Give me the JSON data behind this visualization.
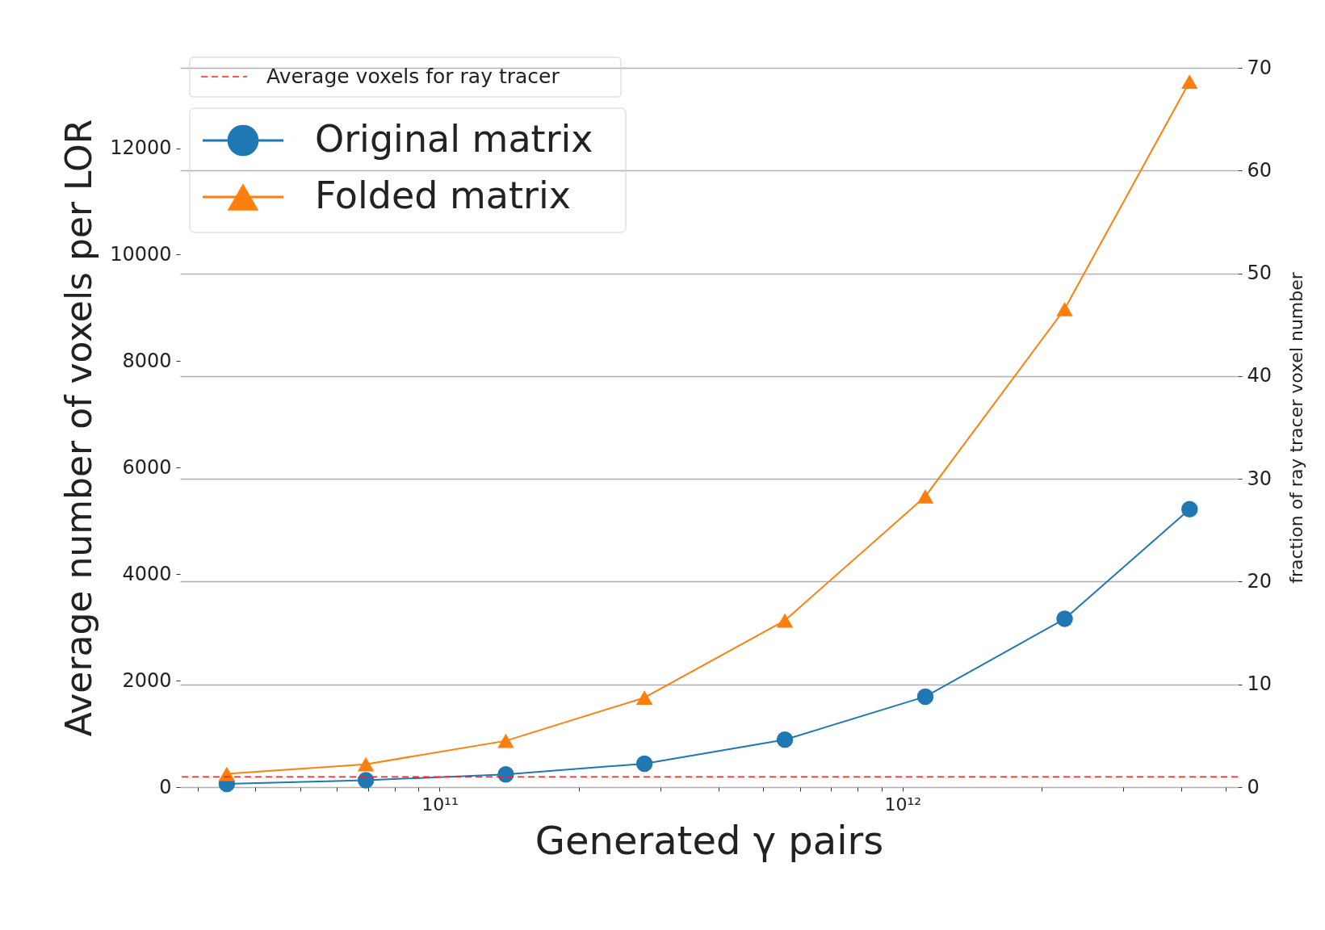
{
  "chart_data": {
    "type": "line",
    "xlabel": "Generated γ pairs",
    "ylabel": "Average number of voxels per LOR",
    "y2label": "fraction of ray tracer voxel number",
    "log": "x",
    "grid": "y2",
    "legend": "top left",
    "x": [
      34700000000.0,
      69300000000.0,
      139000000000.0,
      277000000000.0,
      557000000000.0,
      1120000000000.0,
      2240000000000.0,
      4170000000000.0
    ],
    "xlim": [
      27500000000.0,
      5300000000000.0
    ],
    "xticks": [
      {
        "value": 30000000000.0,
        "label": null
      },
      {
        "value": 40000000000.0,
        "label": null
      },
      {
        "value": 50000000000.0,
        "label": null
      },
      {
        "value": 60000000000.0,
        "label": null
      },
      {
        "value": 70000000000.0,
        "label": null
      },
      {
        "value": 80000000000.0,
        "label": null
      },
      {
        "value": 90000000000.0,
        "label": null
      },
      {
        "value": 100000000000.0,
        "label": "10¹¹"
      },
      {
        "value": 200000000000.0,
        "label": null
      },
      {
        "value": 300000000000.0,
        "label": null
      },
      {
        "value": 400000000000.0,
        "label": null
      },
      {
        "value": 500000000000.0,
        "label": null
      },
      {
        "value": 600000000000.0,
        "label": null
      },
      {
        "value": 700000000000.0,
        "label": null
      },
      {
        "value": 800000000000.0,
        "label": null
      },
      {
        "value": 900000000000.0,
        "label": null
      },
      {
        "value": 1000000000000.0,
        "label": "10¹²"
      },
      {
        "value": 2000000000000.0,
        "label": null
      },
      {
        "value": 3000000000000.0,
        "label": null
      },
      {
        "value": 4000000000000.0,
        "label": null
      },
      {
        "value": 5000000000000.0,
        "label": null
      }
    ],
    "ylim": [
      0,
      13510
    ],
    "yticks": [
      0,
      2000,
      4000,
      6000,
      8000,
      10000,
      12000
    ],
    "y2lim": [
      0,
      70
    ],
    "y2ticks": [
      0,
      10,
      20,
      30,
      40,
      50,
      60,
      70
    ],
    "series": [
      {
        "name": "Original matrix",
        "color": "#1f77b4",
        "marker": "circle",
        "values": [
          60,
          130,
          240,
          440,
          890,
          1700,
          3160,
          5220
        ]
      },
      {
        "name": "Folded matrix",
        "color": "#ff7f0e",
        "marker": "triangle",
        "values": [
          250,
          430,
          870,
          1680,
          3130,
          5460,
          8980,
          13250
        ]
      }
    ],
    "ref_lines": [
      {
        "axis": "y2",
        "value": 1,
        "label": "Average voxels for ray tracer",
        "color": "#ff2020",
        "line_style": "dashed"
      }
    ]
  }
}
